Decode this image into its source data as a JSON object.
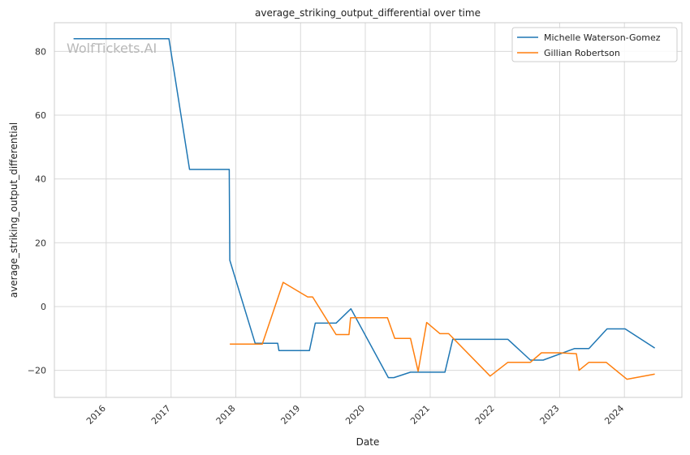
{
  "chart_data": {
    "type": "line",
    "title": "average_striking_output_differential over time",
    "xlabel": "Date",
    "ylabel": "average_striking_output_differential",
    "xlim": [
      "2015-03-15",
      "2024-11-20"
    ],
    "ylim": [
      -28.5,
      89
    ],
    "x_ticks": [
      "2016",
      "2017",
      "2018",
      "2019",
      "2020",
      "2021",
      "2022",
      "2023",
      "2024"
    ],
    "y_ticks": [
      80,
      60,
      40,
      20,
      0,
      -20
    ],
    "grid": true,
    "legend_position": "top-right",
    "watermark": "WolfTickets.AI",
    "series": [
      {
        "name": "Michelle Waterson-Gomez",
        "color": "#1f77b4",
        "points": [
          [
            "2015-07-01",
            84
          ],
          [
            "2016-12-20",
            84
          ],
          [
            "2017-04-15",
            43
          ],
          [
            "2017-11-25",
            43
          ],
          [
            "2017-11-28",
            14.5
          ],
          [
            "2018-04-20",
            -11.5
          ],
          [
            "2018-08-25",
            -11.5
          ],
          [
            "2018-09-01",
            -13.8
          ],
          [
            "2019-02-20",
            -13.8
          ],
          [
            "2019-03-25",
            -5.2
          ],
          [
            "2019-07-20",
            -5.2
          ],
          [
            "2019-10-12",
            -0.7
          ],
          [
            "2020-05-10",
            -22.3
          ],
          [
            "2020-06-10",
            -22.3
          ],
          [
            "2020-09-12",
            -20.6
          ],
          [
            "2021-03-25",
            -20.6
          ],
          [
            "2021-05-08",
            -10.3
          ],
          [
            "2022-03-15",
            -10.3
          ],
          [
            "2022-07-20",
            -16.8
          ],
          [
            "2022-09-30",
            -16.8
          ],
          [
            "2023-03-25",
            -13.2
          ],
          [
            "2023-06-15",
            -13.2
          ],
          [
            "2023-09-25",
            -7
          ],
          [
            "2024-01-05",
            -7
          ],
          [
            "2024-06-20",
            -13
          ]
        ]
      },
      {
        "name": "Gillian Robertson",
        "color": "#ff7f0e",
        "points": [
          [
            "2017-11-28",
            -11.8
          ],
          [
            "2018-05-30",
            -11.8
          ],
          [
            "2018-09-25",
            7.6
          ],
          [
            "2019-02-10",
            3
          ],
          [
            "2019-03-10",
            3
          ],
          [
            "2019-07-20",
            -8.8
          ],
          [
            "2019-10-01",
            -8.8
          ],
          [
            "2019-10-10",
            -3.5
          ],
          [
            "2020-05-05",
            -3.5
          ],
          [
            "2020-06-15",
            -10
          ],
          [
            "2020-09-12",
            -10
          ],
          [
            "2020-10-25",
            -20.3
          ],
          [
            "2020-12-12",
            -5
          ],
          [
            "2021-02-25",
            -8.5
          ],
          [
            "2021-04-15",
            -8.5
          ],
          [
            "2021-12-05",
            -21.8
          ],
          [
            "2022-03-15",
            -17.5
          ],
          [
            "2022-07-20",
            -17.5
          ],
          [
            "2022-09-20",
            -14.5
          ],
          [
            "2023-01-01",
            -14.5
          ],
          [
            "2023-04-05",
            -14.8
          ],
          [
            "2023-04-20",
            -20
          ],
          [
            "2023-06-15",
            -17.5
          ],
          [
            "2023-09-20",
            -17.5
          ],
          [
            "2024-01-15",
            -22.8
          ],
          [
            "2024-06-20",
            -21.2
          ]
        ]
      }
    ]
  }
}
